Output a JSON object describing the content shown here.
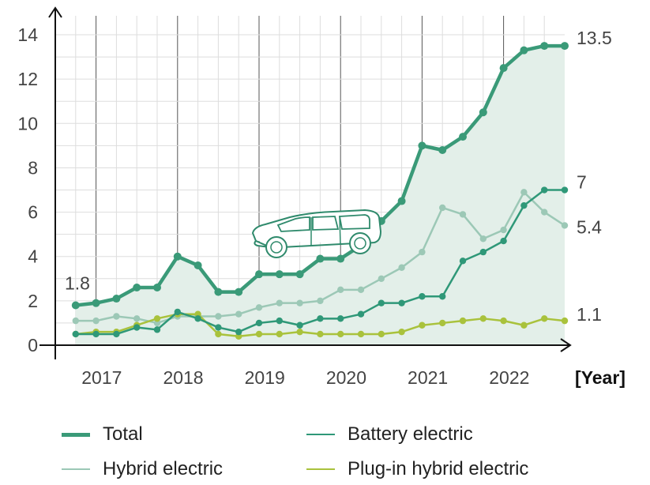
{
  "chart_data": {
    "type": "line",
    "title": "",
    "xlabel": "[Year]",
    "ylabel": "",
    "ylim": [
      0,
      14.5
    ],
    "yticks": [
      0,
      2,
      4,
      6,
      8,
      10,
      12,
      14
    ],
    "x_tick_labels": [
      "2017",
      "2018",
      "2019",
      "2020",
      "2021",
      "2022"
    ],
    "x_range": [
      2016.5,
      2022.75
    ],
    "x": [
      2016.75,
      2017.0,
      2017.25,
      2017.5,
      2017.75,
      2018.0,
      2018.25,
      2018.5,
      2018.75,
      2019.0,
      2019.25,
      2019.5,
      2019.75,
      2020.0,
      2020.25,
      2020.5,
      2020.75,
      2021.0,
      2021.25,
      2021.5,
      2021.75,
      2022.0,
      2022.25,
      2022.5,
      2022.75
    ],
    "series": [
      {
        "name": "Total",
        "color": "#3a9a78",
        "values": [
          1.8,
          1.9,
          2.1,
          2.6,
          2.6,
          4.0,
          3.6,
          2.4,
          2.4,
          3.2,
          3.2,
          3.2,
          3.9,
          3.9,
          4.5,
          5.6,
          6.5,
          9.0,
          8.8,
          9.4,
          10.5,
          12.5,
          13.3,
          13.5,
          13.5
        ]
      },
      {
        "name": "Battery electric",
        "color": "#2f9878",
        "values": [
          0.5,
          0.5,
          0.5,
          0.8,
          0.7,
          1.5,
          1.2,
          0.8,
          0.6,
          1.0,
          1.1,
          0.9,
          1.2,
          1.2,
          1.4,
          1.9,
          1.9,
          2.2,
          2.2,
          3.8,
          4.2,
          4.7,
          6.3,
          7.0,
          7.0
        ]
      },
      {
        "name": "Hybrid electric",
        "color": "#9cc8b6",
        "values": [
          1.1,
          1.1,
          1.3,
          1.2,
          1.0,
          1.3,
          1.3,
          1.3,
          1.4,
          1.7,
          1.9,
          1.9,
          2.0,
          2.5,
          2.5,
          3.0,
          3.5,
          4.2,
          6.2,
          5.9,
          4.8,
          5.2,
          6.9,
          6.0,
          5.4
        ]
      },
      {
        "name": "Plug-in hybrid electric",
        "color": "#a9c23c",
        "values": [
          0.5,
          0.6,
          0.6,
          0.9,
          1.2,
          1.4,
          1.4,
          0.5,
          0.4,
          0.5,
          0.5,
          0.6,
          0.5,
          0.5,
          0.5,
          0.5,
          0.6,
          0.9,
          1.0,
          1.1,
          1.2,
          1.1,
          0.9,
          1.2,
          1.1
        ]
      }
    ],
    "annotations": [
      {
        "text": "1.8",
        "series": "Total",
        "position": "start"
      },
      {
        "text": "13.5",
        "series": "Total",
        "position": "end"
      },
      {
        "text": "7",
        "series": "Battery electric",
        "position": "end"
      },
      {
        "text": "5.4",
        "series": "Hybrid electric",
        "position": "end"
      },
      {
        "text": "1.1",
        "series": "Plug-in hybrid electric",
        "position": "end"
      }
    ],
    "area_fill_series": "Total",
    "grid": true,
    "legend_position": "bottom",
    "decoration": "car-icon"
  },
  "legend": [
    {
      "label": "Total",
      "color": "#3a9a78"
    },
    {
      "label": "Battery electric",
      "color": "#2f9878"
    },
    {
      "label": "Hybrid electric",
      "color": "#9cc8b6"
    },
    {
      "label": "Plug-in hybrid electric",
      "color": "#a9c23c"
    }
  ]
}
